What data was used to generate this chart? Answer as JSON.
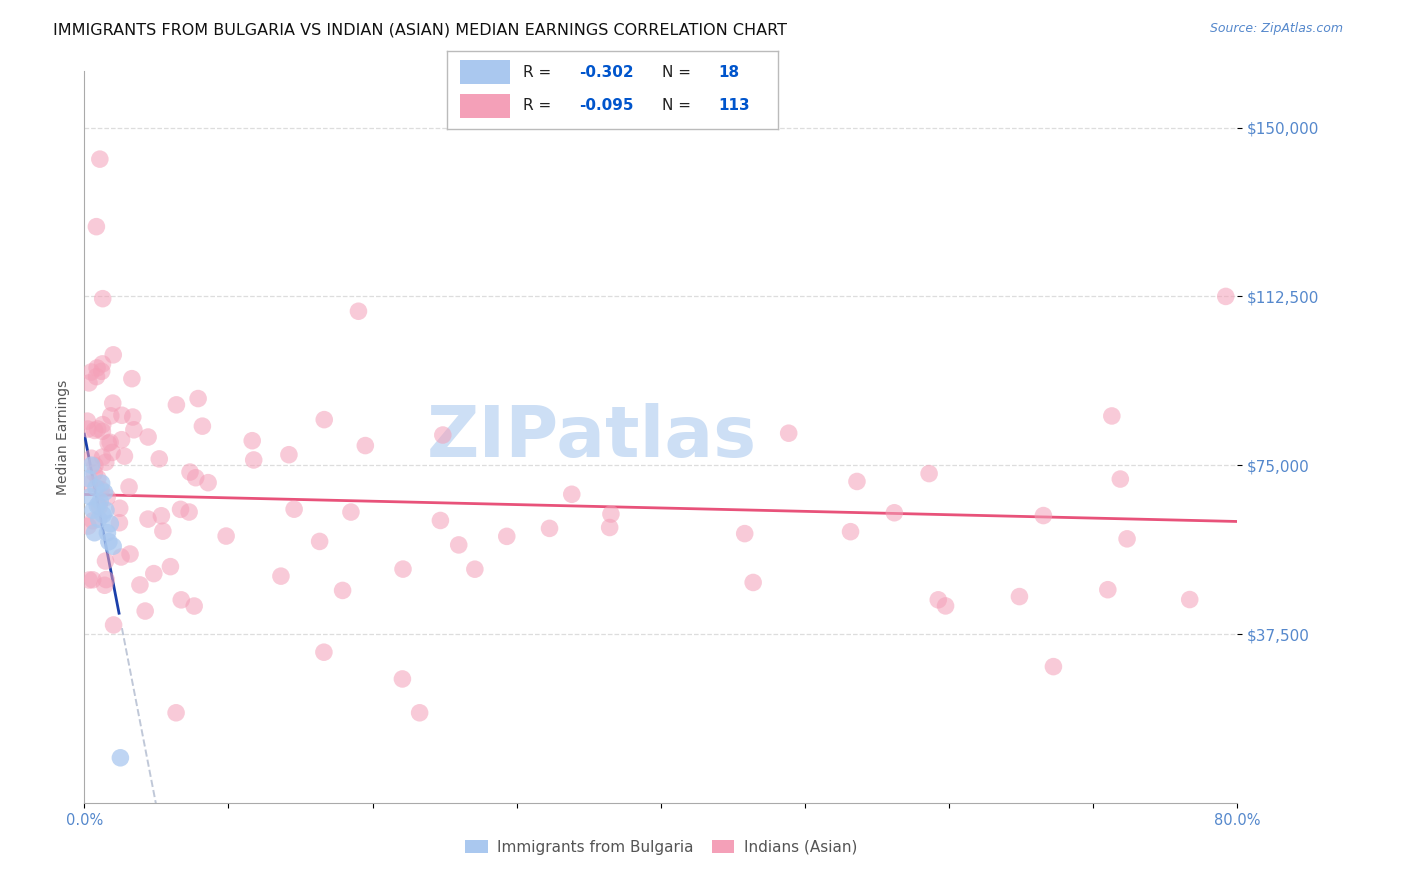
{
  "title": "IMMIGRANTS FROM BULGARIA VS INDIAN (ASIAN) MEDIAN EARNINGS CORRELATION CHART",
  "source": "Source: ZipAtlas.com",
  "ylabel": "Median Earnings",
  "x_min": 0.0,
  "x_max": 0.8,
  "y_min": 0,
  "y_max": 162500,
  "yticks": [
    37500,
    75000,
    112500,
    150000
  ],
  "ytick_labels": [
    "$37,500",
    "$75,000",
    "$112,500",
    "$150,000"
  ],
  "bulgaria_R": -0.302,
  "bulgaria_N": 18,
  "india_R": -0.095,
  "india_N": 113,
  "bulgaria_color": "#aac8ef",
  "india_color": "#f4a0b8",
  "bulgaria_line_color": "#1a3faa",
  "india_line_color": "#e8527a",
  "dashed_line_color": "#c0c8d8",
  "background_color": "#ffffff",
  "watermark_text": "ZIPatlas",
  "watermark_color": "#cddff5",
  "axis_color": "#5588cc",
  "grid_color": "#dddddd",
  "title_color": "#111111",
  "title_fontsize": 11.5,
  "ylabel_fontsize": 10,
  "legend_R_color": "#0055cc",
  "legend_N_color": "#0055cc",
  "legend_label_color": "#222222"
}
